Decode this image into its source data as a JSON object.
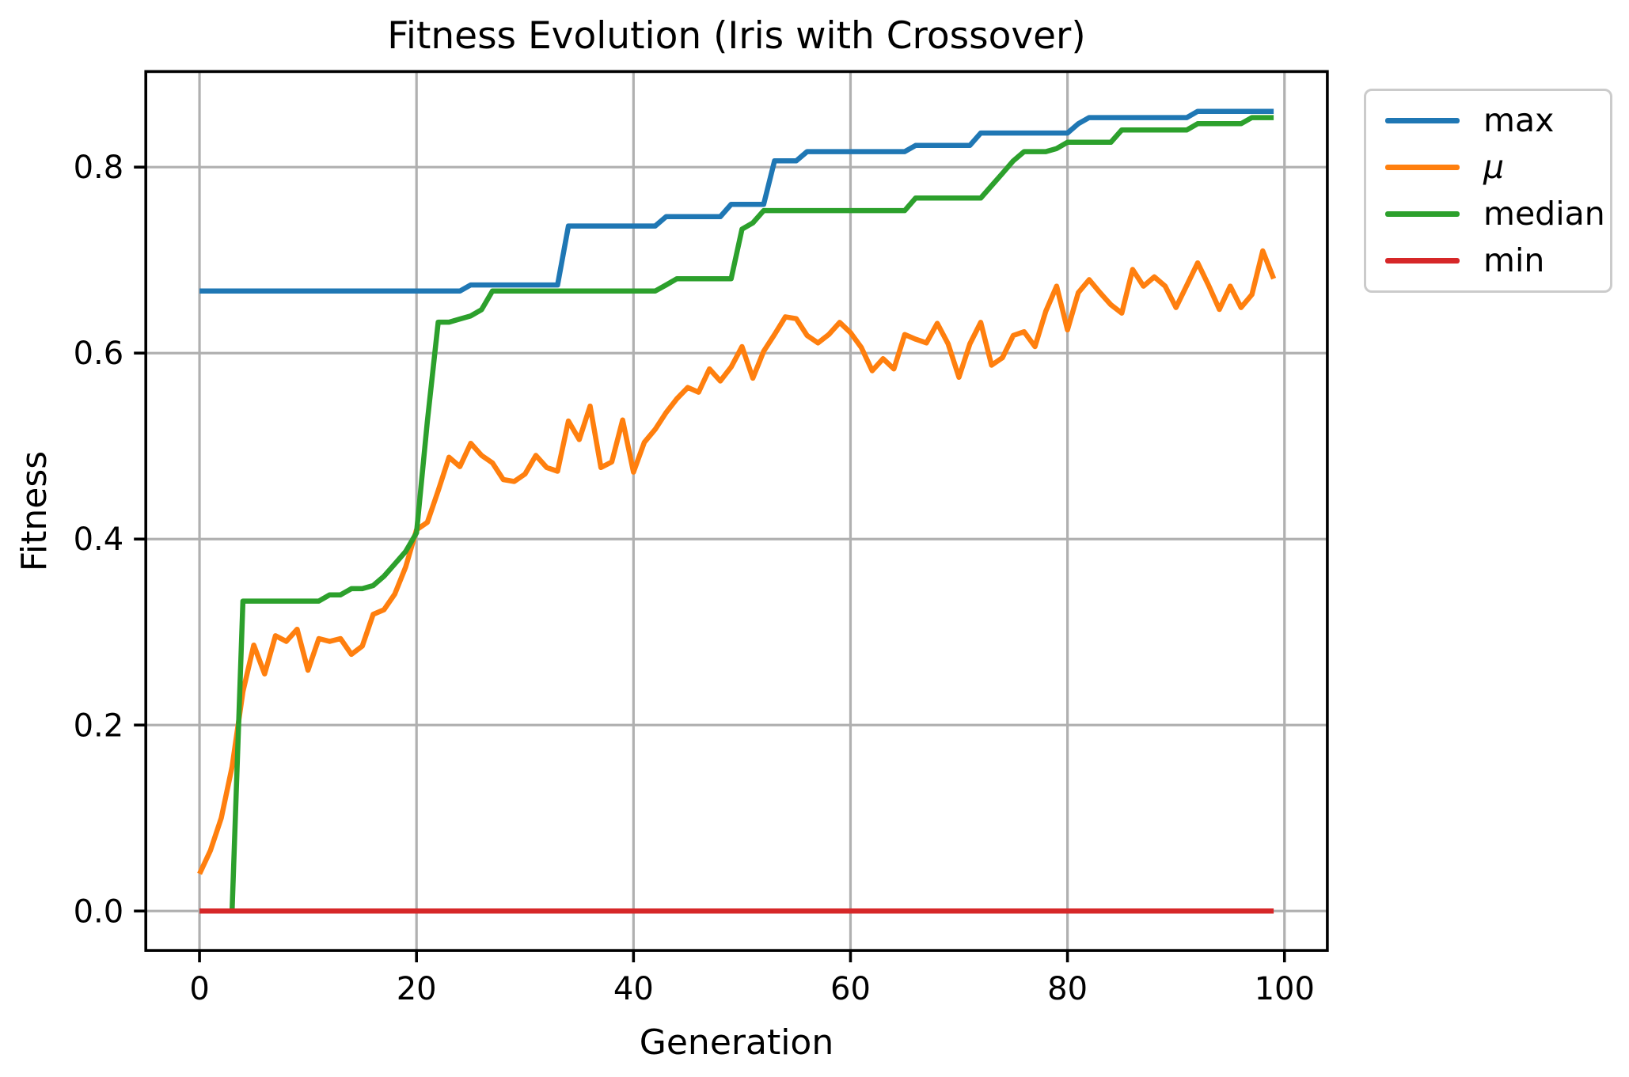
{
  "chart": {
    "title": "Fitness Evolution (Iris with Crossover)",
    "xlabel": "Generation",
    "ylabel": "Fitness"
  },
  "chart_data": {
    "type": "line",
    "title": "Fitness Evolution (Iris with Crossover)",
    "xlabel": "Generation",
    "ylabel": "Fitness",
    "x_start": 0,
    "x_step": 1,
    "x_count": 100,
    "xlim": [
      -4.95,
      103.95
    ],
    "ylim": [
      -0.0424,
      0.9028
    ],
    "x_ticks": [
      0,
      20,
      40,
      60,
      80,
      100
    ],
    "x_tick_labels": [
      "0",
      "20",
      "40",
      "60",
      "80",
      "100"
    ],
    "y_ticks": [
      0.0,
      0.2,
      0.4,
      0.6,
      0.8
    ],
    "y_tick_labels": [
      "0.0",
      "0.2",
      "0.4",
      "0.6",
      "0.8"
    ],
    "grid": true,
    "grid_color": "#b0b0b0",
    "spine_color": "#000000",
    "legend_position": "outside upper right",
    "series": [
      {
        "name": "max",
        "color": "#1f77b4",
        "italic": false,
        "values": [
          0.6667,
          0.6667,
          0.6667,
          0.6667,
          0.6667,
          0.6667,
          0.6667,
          0.6667,
          0.6667,
          0.6667,
          0.6667,
          0.6667,
          0.6667,
          0.6667,
          0.6667,
          0.6667,
          0.6667,
          0.6667,
          0.6667,
          0.6667,
          0.6667,
          0.6667,
          0.6667,
          0.6667,
          0.6667,
          0.6733,
          0.6733,
          0.6733,
          0.6733,
          0.6733,
          0.6733,
          0.6733,
          0.6733,
          0.6733,
          0.7367,
          0.7367,
          0.7367,
          0.7367,
          0.7367,
          0.7367,
          0.7367,
          0.7367,
          0.7367,
          0.7467,
          0.7467,
          0.7467,
          0.7467,
          0.7467,
          0.7467,
          0.76,
          0.76,
          0.76,
          0.76,
          0.8067,
          0.8067,
          0.8067,
          0.8167,
          0.8167,
          0.8167,
          0.8167,
          0.8167,
          0.8167,
          0.8167,
          0.8167,
          0.8167,
          0.8167,
          0.8233,
          0.8233,
          0.8233,
          0.8233,
          0.8233,
          0.8233,
          0.8367,
          0.8367,
          0.8367,
          0.8367,
          0.8367,
          0.8367,
          0.8367,
          0.8367,
          0.8367,
          0.8467,
          0.8533,
          0.8533,
          0.8533,
          0.8533,
          0.8533,
          0.8533,
          0.8533,
          0.8533,
          0.8533,
          0.8533,
          0.86,
          0.86,
          0.86,
          0.86,
          0.86,
          0.86,
          0.86,
          0.86
        ]
      },
      {
        "name": "μ",
        "color": "#ff7f0e",
        "italic": true,
        "values": [
          0.04,
          0.065,
          0.1,
          0.155,
          0.236,
          0.286,
          0.255,
          0.296,
          0.29,
          0.303,
          0.259,
          0.293,
          0.29,
          0.293,
          0.276,
          0.285,
          0.319,
          0.324,
          0.341,
          0.37,
          0.41,
          0.418,
          0.452,
          0.488,
          0.478,
          0.503,
          0.49,
          0.482,
          0.464,
          0.462,
          0.47,
          0.49,
          0.477,
          0.473,
          0.527,
          0.507,
          0.543,
          0.477,
          0.483,
          0.528,
          0.472,
          0.504,
          0.518,
          0.536,
          0.551,
          0.563,
          0.558,
          0.583,
          0.57,
          0.585,
          0.607,
          0.573,
          0.602,
          0.62,
          0.639,
          0.637,
          0.619,
          0.611,
          0.62,
          0.633,
          0.622,
          0.606,
          0.581,
          0.594,
          0.583,
          0.62,
          0.615,
          0.611,
          0.632,
          0.61,
          0.574,
          0.61,
          0.633,
          0.587,
          0.595,
          0.619,
          0.623,
          0.607,
          0.645,
          0.672,
          0.625,
          0.665,
          0.679,
          0.665,
          0.652,
          0.643,
          0.69,
          0.672,
          0.682,
          0.672,
          0.649,
          0.673,
          0.697,
          0.673,
          0.647,
          0.672,
          0.649,
          0.663,
          0.71,
          0.68
        ]
      },
      {
        "name": "median",
        "color": "#2ca02c",
        "italic": false,
        "values": [
          0,
          0,
          0,
          0,
          0.3333,
          0.3333,
          0.3333,
          0.3333,
          0.3333,
          0.3333,
          0.3333,
          0.3333,
          0.34,
          0.34,
          0.3467,
          0.3467,
          0.35,
          0.36,
          0.3733,
          0.3867,
          0.4067,
          0.5267,
          0.6333,
          0.6333,
          0.6367,
          0.64,
          0.6467,
          0.6667,
          0.6667,
          0.6667,
          0.6667,
          0.6667,
          0.6667,
          0.6667,
          0.6667,
          0.6667,
          0.6667,
          0.6667,
          0.6667,
          0.6667,
          0.6667,
          0.6667,
          0.6667,
          0.6733,
          0.68,
          0.68,
          0.68,
          0.68,
          0.68,
          0.68,
          0.7333,
          0.74,
          0.7533,
          0.7533,
          0.7533,
          0.7533,
          0.7533,
          0.7533,
          0.7533,
          0.7533,
          0.7533,
          0.7533,
          0.7533,
          0.7533,
          0.7533,
          0.7533,
          0.7667,
          0.7667,
          0.7667,
          0.7667,
          0.7667,
          0.7667,
          0.7667,
          0.78,
          0.7933,
          0.8067,
          0.8167,
          0.8167,
          0.8167,
          0.82,
          0.8267,
          0.8267,
          0.8267,
          0.8267,
          0.8267,
          0.84,
          0.84,
          0.84,
          0.84,
          0.84,
          0.84,
          0.84,
          0.8467,
          0.8467,
          0.8467,
          0.8467,
          0.8467,
          0.8533,
          0.8533,
          0.8533
        ]
      },
      {
        "name": "min",
        "color": "#d62728",
        "italic": false,
        "values": [
          0,
          0,
          0,
          0,
          0,
          0,
          0,
          0,
          0,
          0,
          0,
          0,
          0,
          0,
          0,
          0,
          0,
          0,
          0,
          0,
          0,
          0,
          0,
          0,
          0,
          0,
          0,
          0,
          0,
          0,
          0,
          0,
          0,
          0,
          0,
          0,
          0,
          0,
          0,
          0,
          0,
          0,
          0,
          0,
          0,
          0,
          0,
          0,
          0,
          0,
          0,
          0,
          0,
          0,
          0,
          0,
          0,
          0,
          0,
          0,
          0,
          0,
          0,
          0,
          0,
          0,
          0,
          0,
          0,
          0,
          0,
          0,
          0,
          0,
          0,
          0,
          0,
          0,
          0,
          0,
          0,
          0,
          0,
          0,
          0,
          0,
          0,
          0,
          0,
          0,
          0,
          0,
          0,
          0,
          0,
          0,
          0,
          0,
          0,
          0
        ]
      }
    ]
  }
}
